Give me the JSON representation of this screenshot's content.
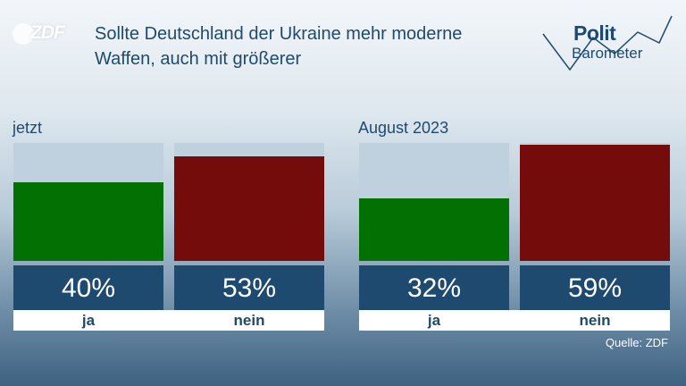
{
  "header": {
    "broadcaster_logo": "ZDF",
    "title": "Sollte Deutschland der Ukraine mehr moderne Waffen, auch mit größerer",
    "brand_line1": "Polit",
    "brand_line2": "Barometer"
  },
  "colors": {
    "ja": "#037003",
    "nein": "#740c0c",
    "empty": "#bfd1de",
    "value_box": "#1f4a70",
    "title": "#1d4a6e"
  },
  "source": "Quelle: ZDF",
  "chart_data": [
    {
      "type": "bar",
      "title": "jetzt",
      "categories": [
        "ja",
        "nein"
      ],
      "values": [
        40,
        53
      ],
      "value_labels": [
        "40%",
        "53%"
      ],
      "ylim": [
        0,
        60
      ]
    },
    {
      "type": "bar",
      "title": "August 2023",
      "categories": [
        "ja",
        "nein"
      ],
      "values": [
        32,
        59
      ],
      "value_labels": [
        "32%",
        "59%"
      ],
      "ylim": [
        0,
        60
      ]
    }
  ]
}
